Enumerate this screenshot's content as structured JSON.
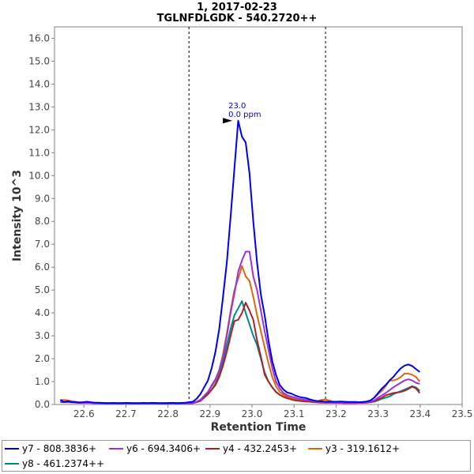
{
  "chart_data": {
    "type": "line",
    "title": "1, 2017-02-23",
    "subtitle": "TGLNFDLGDK - 540.2720++",
    "xlabel": "Retention Time",
    "ylabel": "Intensity 10^3",
    "xlim": [
      22.53,
      23.5
    ],
    "ylim": [
      0,
      16.5
    ],
    "xticks": [
      "22.6",
      "22.7",
      "22.8",
      "22.9",
      "23.0",
      "23.1",
      "23.2",
      "23.3",
      "23.4",
      "23.5"
    ],
    "yticks": [
      "0.0",
      "1.0",
      "2.0",
      "3.0",
      "4.0",
      "5.0",
      "6.0",
      "7.0",
      "8.0",
      "9.0",
      "10.0",
      "11.0",
      "12.0",
      "13.0",
      "14.0",
      "15.0",
      "16.0"
    ],
    "boundaries": [
      22.85,
      23.175
    ],
    "annotation": {
      "x": 22.955,
      "y": 12.4,
      "line1": "23.0",
      "line2": "0.0 ppm",
      "color": "#0000cc"
    },
    "x": [
      22.544,
      22.553,
      22.562,
      22.571,
      22.58,
      22.589,
      22.598,
      22.607,
      22.616,
      22.625,
      22.634,
      22.643,
      22.652,
      22.661,
      22.67,
      22.679,
      22.688,
      22.697,
      22.706,
      22.715,
      22.724,
      22.733,
      22.742,
      22.751,
      22.76,
      22.769,
      22.778,
      22.787,
      22.796,
      22.805,
      22.814,
      22.823,
      22.832,
      22.841,
      22.85,
      22.859,
      22.868,
      22.877,
      22.886,
      22.895,
      22.904,
      22.913,
      22.922,
      22.931,
      22.94,
      22.949,
      22.958,
      22.967,
      22.976,
      22.985,
      22.994,
      23.003,
      23.012,
      23.021,
      23.03,
      23.039,
      23.048,
      23.057,
      23.066,
      23.075,
      23.084,
      23.093,
      23.102,
      23.111,
      23.12,
      23.129,
      23.138,
      23.147,
      23.156,
      23.165,
      23.174,
      23.183,
      23.192,
      23.201,
      23.21,
      23.219,
      23.228,
      23.237,
      23.246,
      23.255,
      23.264,
      23.273,
      23.282,
      23.291,
      23.3,
      23.309,
      23.318,
      23.327,
      23.336,
      23.345,
      23.354,
      23.363,
      23.372,
      23.381,
      23.39,
      23.399
    ],
    "series": [
      {
        "name": "y7 - 808.3836+",
        "color": "#0000ee",
        "values": [
          0.2,
          0.1,
          0.15,
          0.1,
          0.1,
          0.08,
          0.1,
          0.12,
          0.1,
          0.08,
          0.08,
          0.07,
          0.06,
          0.06,
          0.07,
          0.06,
          0.06,
          0.07,
          0.07,
          0.06,
          0.06,
          0.06,
          0.07,
          0.06,
          0.07,
          0.07,
          0.06,
          0.06,
          0.06,
          0.07,
          0.07,
          0.06,
          0.07,
          0.08,
          0.1,
          0.12,
          0.25,
          0.45,
          0.75,
          1.05,
          1.6,
          2.3,
          3.3,
          4.7,
          6.2,
          8.2,
          10.3,
          12.4,
          11.7,
          11.45,
          10.1,
          8.0,
          6.2,
          4.8,
          3.9,
          2.8,
          1.9,
          1.3,
          0.85,
          0.65,
          0.52,
          0.48,
          0.4,
          0.34,
          0.3,
          0.28,
          0.22,
          0.18,
          0.15,
          0.14,
          0.12,
          0.12,
          0.12,
          0.12,
          0.13,
          0.12,
          0.11,
          0.11,
          0.11,
          0.1,
          0.11,
          0.13,
          0.18,
          0.3,
          0.5,
          0.7,
          0.85,
          1.05,
          1.2,
          1.4,
          1.58,
          1.7,
          1.75,
          1.68,
          1.55,
          1.42
        ]
      },
      {
        "name": "y6 - 694.3406+",
        "color": "#9933dd",
        "values": [
          0.12,
          0.12,
          0.1,
          0.1,
          0.08,
          0.08,
          0.07,
          0.07,
          0.07,
          0.06,
          0.06,
          0.06,
          0.05,
          0.05,
          0.05,
          0.05,
          0.05,
          0.05,
          0.05,
          0.05,
          0.05,
          0.05,
          0.05,
          0.05,
          0.05,
          0.05,
          0.05,
          0.05,
          0.05,
          0.05,
          0.05,
          0.05,
          0.05,
          0.05,
          0.06,
          0.07,
          0.12,
          0.2,
          0.38,
          0.55,
          0.85,
          1.1,
          1.5,
          2.1,
          3.0,
          4.0,
          4.85,
          5.8,
          6.3,
          6.68,
          6.68,
          5.6,
          5.0,
          4.1,
          3.2,
          2.4,
          1.6,
          1.0,
          0.7,
          0.5,
          0.4,
          0.35,
          0.3,
          0.25,
          0.22,
          0.2,
          0.18,
          0.15,
          0.12,
          0.1,
          0.09,
          0.09,
          0.08,
          0.08,
          0.08,
          0.08,
          0.08,
          0.08,
          0.08,
          0.08,
          0.08,
          0.1,
          0.12,
          0.18,
          0.3,
          0.4,
          0.5,
          0.62,
          0.75,
          0.85,
          0.95,
          1.05,
          1.1,
          1.05,
          0.95,
          0.9
        ]
      },
      {
        "name": "y4 - 432.2453+",
        "color": "#aa2222",
        "values": [
          0.1,
          0.1,
          0.1,
          0.1,
          0.1,
          0.09,
          0.08,
          0.08,
          0.08,
          0.07,
          0.07,
          0.06,
          0.06,
          0.05,
          0.05,
          0.05,
          0.05,
          0.05,
          0.05,
          0.05,
          0.05,
          0.05,
          0.05,
          0.05,
          0.05,
          0.05,
          0.05,
          0.05,
          0.05,
          0.05,
          0.05,
          0.05,
          0.05,
          0.05,
          0.05,
          0.06,
          0.1,
          0.15,
          0.3,
          0.45,
          0.65,
          0.85,
          1.2,
          1.7,
          2.3,
          3.0,
          3.65,
          3.7,
          4.0,
          4.45,
          4.1,
          3.7,
          2.8,
          2.1,
          1.3,
          1.0,
          0.75,
          0.55,
          0.42,
          0.33,
          0.27,
          0.22,
          0.18,
          0.16,
          0.14,
          0.13,
          0.12,
          0.1,
          0.09,
          0.08,
          0.08,
          0.08,
          0.08,
          0.07,
          0.07,
          0.06,
          0.06,
          0.06,
          0.06,
          0.07,
          0.07,
          0.08,
          0.1,
          0.15,
          0.22,
          0.3,
          0.4,
          0.45,
          0.5,
          0.52,
          0.55,
          0.6,
          0.68,
          0.78,
          0.7,
          0.5
        ]
      },
      {
        "name": "y3 - 319.1612+",
        "color": "#dd6611",
        "values": [
          0.2,
          0.2,
          0.18,
          0.15,
          0.12,
          0.1,
          0.1,
          0.09,
          0.08,
          0.08,
          0.07,
          0.07,
          0.06,
          0.06,
          0.06,
          0.06,
          0.06,
          0.06,
          0.06,
          0.06,
          0.06,
          0.06,
          0.06,
          0.06,
          0.06,
          0.06,
          0.06,
          0.06,
          0.06,
          0.06,
          0.06,
          0.06,
          0.06,
          0.06,
          0.06,
          0.07,
          0.12,
          0.2,
          0.35,
          0.55,
          0.8,
          1.05,
          1.5,
          2.2,
          3.1,
          4.1,
          5.0,
          5.5,
          6.05,
          5.6,
          5.4,
          4.7,
          3.9,
          3.2,
          2.5,
          1.8,
          1.2,
          0.8,
          0.55,
          0.42,
          0.33,
          0.28,
          0.24,
          0.2,
          0.18,
          0.18,
          0.17,
          0.16,
          0.15,
          0.2,
          0.22,
          0.18,
          0.12,
          0.1,
          0.09,
          0.08,
          0.08,
          0.08,
          0.08,
          0.09,
          0.1,
          0.12,
          0.18,
          0.3,
          0.45,
          0.6,
          0.8,
          1.05,
          1.05,
          1.1,
          1.2,
          1.35,
          1.35,
          1.3,
          1.2,
          1.0
        ]
      },
      {
        "name": "y8 - 461.2374++",
        "color": "#008888",
        "values": [
          0.12,
          0.12,
          0.1,
          0.1,
          0.09,
          0.08,
          0.08,
          0.07,
          0.07,
          0.06,
          0.06,
          0.06,
          0.05,
          0.05,
          0.05,
          0.05,
          0.05,
          0.05,
          0.05,
          0.05,
          0.05,
          0.05,
          0.05,
          0.05,
          0.05,
          0.05,
          0.05,
          0.05,
          0.05,
          0.05,
          0.05,
          0.05,
          0.05,
          0.05,
          0.05,
          0.06,
          0.1,
          0.16,
          0.3,
          0.45,
          0.65,
          0.9,
          1.3,
          1.9,
          2.6,
          3.3,
          3.9,
          4.2,
          4.52,
          4.0,
          3.5,
          3.0,
          2.6,
          2.0,
          1.4,
          1.0,
          0.75,
          0.55,
          0.42,
          0.33,
          0.28,
          0.24,
          0.2,
          0.18,
          0.16,
          0.14,
          0.12,
          0.11,
          0.1,
          0.09,
          0.08,
          0.08,
          0.08,
          0.07,
          0.07,
          0.07,
          0.07,
          0.07,
          0.07,
          0.07,
          0.08,
          0.09,
          0.1,
          0.12,
          0.18,
          0.25,
          0.3,
          0.35,
          0.45,
          0.52,
          0.58,
          0.65,
          0.72,
          0.8,
          0.75,
          0.6
        ]
      }
    ]
  }
}
